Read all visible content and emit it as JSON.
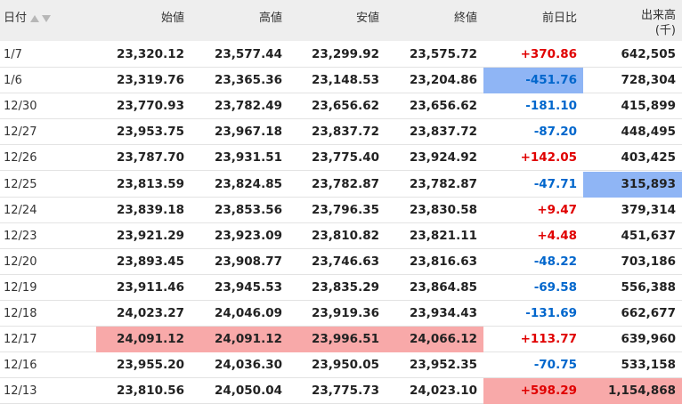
{
  "columns": {
    "date": "日付",
    "open": "始値",
    "high": "高値",
    "low": "安値",
    "close": "終値",
    "change": "前日比",
    "volume": "出来高",
    "volume_unit": "(千)"
  },
  "colors": {
    "positive": "#e00000",
    "negative": "#0066cc",
    "highlight_high": "#f8a9a9",
    "highlight_low": "#8fb5f5"
  },
  "rows": [
    {
      "date": "1/7",
      "open": "23,320.12",
      "high": "23,577.44",
      "low": "23,299.92",
      "close": "23,575.72",
      "change": "+370.86",
      "volume": "642,505",
      "dir": "pos",
      "hl": []
    },
    {
      "date": "1/6",
      "open": "23,319.76",
      "high": "23,365.36",
      "low": "23,148.53",
      "close": "23,204.86",
      "change": "-451.76",
      "volume": "728,304",
      "dir": "neg",
      "hl": [
        [
          "change",
          "blue"
        ]
      ]
    },
    {
      "date": "12/30",
      "open": "23,770.93",
      "high": "23,782.49",
      "low": "23,656.62",
      "close": "23,656.62",
      "change": "-181.10",
      "volume": "415,899",
      "dir": "neg",
      "hl": []
    },
    {
      "date": "12/27",
      "open": "23,953.75",
      "high": "23,967.18",
      "low": "23,837.72",
      "close": "23,837.72",
      "change": "-87.20",
      "volume": "448,495",
      "dir": "neg",
      "hl": []
    },
    {
      "date": "12/26",
      "open": "23,787.70",
      "high": "23,931.51",
      "low": "23,775.40",
      "close": "23,924.92",
      "change": "+142.05",
      "volume": "403,425",
      "dir": "pos",
      "hl": []
    },
    {
      "date": "12/25",
      "open": "23,813.59",
      "high": "23,824.85",
      "low": "23,782.87",
      "close": "23,782.87",
      "change": "-47.71",
      "volume": "315,893",
      "dir": "neg",
      "hl": [
        [
          "volume",
          "blue"
        ]
      ]
    },
    {
      "date": "12/24",
      "open": "23,839.18",
      "high": "23,853.56",
      "low": "23,796.35",
      "close": "23,830.58",
      "change": "+9.47",
      "volume": "379,314",
      "dir": "pos",
      "hl": []
    },
    {
      "date": "12/23",
      "open": "23,921.29",
      "high": "23,923.09",
      "low": "23,810.82",
      "close": "23,821.11",
      "change": "+4.48",
      "volume": "451,637",
      "dir": "pos",
      "hl": []
    },
    {
      "date": "12/20",
      "open": "23,893.45",
      "high": "23,908.77",
      "low": "23,746.63",
      "close": "23,816.63",
      "change": "-48.22",
      "volume": "703,186",
      "dir": "neg",
      "hl": []
    },
    {
      "date": "12/19",
      "open": "23,911.46",
      "high": "23,945.53",
      "low": "23,835.29",
      "close": "23,864.85",
      "change": "-69.58",
      "volume": "556,388",
      "dir": "neg",
      "hl": []
    },
    {
      "date": "12/18",
      "open": "24,023.27",
      "high": "24,046.09",
      "low": "23,919.36",
      "close": "23,934.43",
      "change": "-131.69",
      "volume": "662,677",
      "dir": "neg",
      "hl": []
    },
    {
      "date": "12/17",
      "open": "24,091.12",
      "high": "24,091.12",
      "low": "23,996.51",
      "close": "24,066.12",
      "change": "+113.77",
      "volume": "639,960",
      "dir": "pos",
      "hl": [
        [
          "open",
          "red"
        ],
        [
          "high",
          "red"
        ],
        [
          "low",
          "red"
        ],
        [
          "close",
          "red"
        ]
      ]
    },
    {
      "date": "12/16",
      "open": "23,955.20",
      "high": "24,036.30",
      "low": "23,950.05",
      "close": "23,952.35",
      "change": "-70.75",
      "volume": "533,158",
      "dir": "neg",
      "hl": []
    },
    {
      "date": "12/13",
      "open": "23,810.56",
      "high": "24,050.04",
      "low": "23,775.73",
      "close": "24,023.10",
      "change": "+598.29",
      "volume": "1,154,868",
      "dir": "pos",
      "hl": [
        [
          "change",
          "red"
        ],
        [
          "volume",
          "red"
        ]
      ]
    }
  ]
}
